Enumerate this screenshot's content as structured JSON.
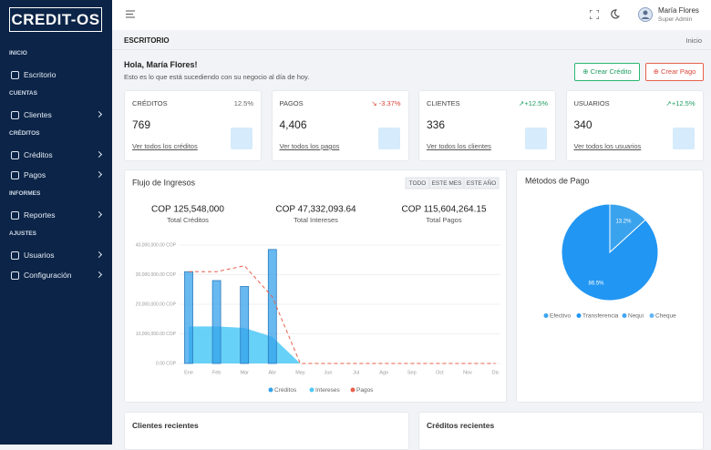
{
  "sidebar": {
    "logo": "CREDIT-OS",
    "sections": [
      {
        "title": "INICIO",
        "items": [
          "Escritorio"
        ]
      },
      {
        "title": "CUENTAS",
        "items": [
          "Clientes"
        ]
      },
      {
        "title": "CRÉDITOS",
        "items": [
          "Créditos",
          "Pagos"
        ]
      },
      {
        "title": "INFORMES",
        "items": [
          "Reportes"
        ]
      },
      {
        "title": "AJUSTES",
        "items": [
          "Usuarios",
          "Configuración"
        ]
      }
    ]
  },
  "header": {
    "user_name": "María Flores",
    "user_role": "Super Admin"
  },
  "breadcrumb": {
    "page": "ESCRITORIO",
    "home": "Inicio"
  },
  "greeting": {
    "title": "Hola, María Flores!",
    "subtitle": "Esto es lo que está sucediendo con su negocio al día de hoy."
  },
  "actions": [
    "Crear Crédito",
    "Crear Pago"
  ],
  "stats": [
    {
      "label": "CRÉDITOS",
      "change": "12.5%",
      "value": "769",
      "link": "Ver todos los créditos"
    },
    {
      "label": "PAGOS",
      "change": "-3.37%",
      "value": "4,406",
      "link": "Ver todos los pagos"
    },
    {
      "label": "CLIENTES",
      "change": "+12.5%",
      "value": "336",
      "link": "Ver todos los clientes"
    },
    {
      "label": "USUARIOS",
      "change": "+12.5%",
      "value": "340",
      "link": "Ver todos los usuarios"
    }
  ],
  "income_chart": {
    "type": "bar",
    "title": "Flujo de Ingresos",
    "filters": [
      "TODO",
      "ESTE MES",
      "ESTE AÑO"
    ],
    "summary": [
      {
        "value": "COP 125,548,000",
        "label": "Total Créditos"
      },
      {
        "value": "COP 47,332,093.64",
        "label": "Total Intereses"
      },
      {
        "value": "COP 115,604,264.15",
        "label": "Total Pagos"
      }
    ],
    "categories": [
      "Ene",
      "Feb",
      "Mar",
      "Abr",
      "May",
      "Jun",
      "Jul",
      "Ago",
      "Sep",
      "Oct",
      "Nov",
      "Dic"
    ],
    "series": [
      {
        "name": "Créditos",
        "kind": "bar",
        "color": "#36a2eb",
        "values": [
          31000000,
          28000000,
          26000000,
          38500000,
          0,
          0,
          0,
          0,
          0,
          0,
          0,
          0
        ]
      },
      {
        "name": "Intereses",
        "kind": "area",
        "color": "#4dc9f6",
        "values": [
          12500000,
          12500000,
          12000000,
          9000000,
          0,
          0,
          0,
          0,
          0,
          0,
          0,
          0
        ]
      },
      {
        "name": "Pagos",
        "kind": "line",
        "color": "#e8604c",
        "values": [
          31000000,
          31000000,
          33000000,
          22500000,
          0,
          0,
          0,
          0,
          0,
          0,
          0,
          0
        ]
      }
    ],
    "ylim": [
      0,
      40000000
    ],
    "yticks": [
      {
        "value": 0,
        "label": "0.00 COP"
      },
      {
        "value": 10000000,
        "label": "10,000,000.00 COP"
      },
      {
        "value": 20000000,
        "label": "20,000,000.00 COP"
      },
      {
        "value": 30000000,
        "label": "30,000,000.00 COP"
      },
      {
        "value": 40000000,
        "label": "40,000,000.00 COP"
      }
    ]
  },
  "payment_chart": {
    "type": "pie",
    "title": "Métodos de Pago",
    "categories": [
      "Efectivo",
      "Transferencia",
      "Nequi",
      "Cheque"
    ],
    "values": [
      13.2,
      86.5,
      0,
      0
    ],
    "value_labels": [
      "13.2%",
      "86.5%",
      null,
      null
    ],
    "colors": [
      "#3aa3ee",
      "#2196f3",
      "#42a5f5",
      "#64b5f6"
    ]
  },
  "recent": [
    "Clientes recientes",
    "Créditos recientes"
  ]
}
